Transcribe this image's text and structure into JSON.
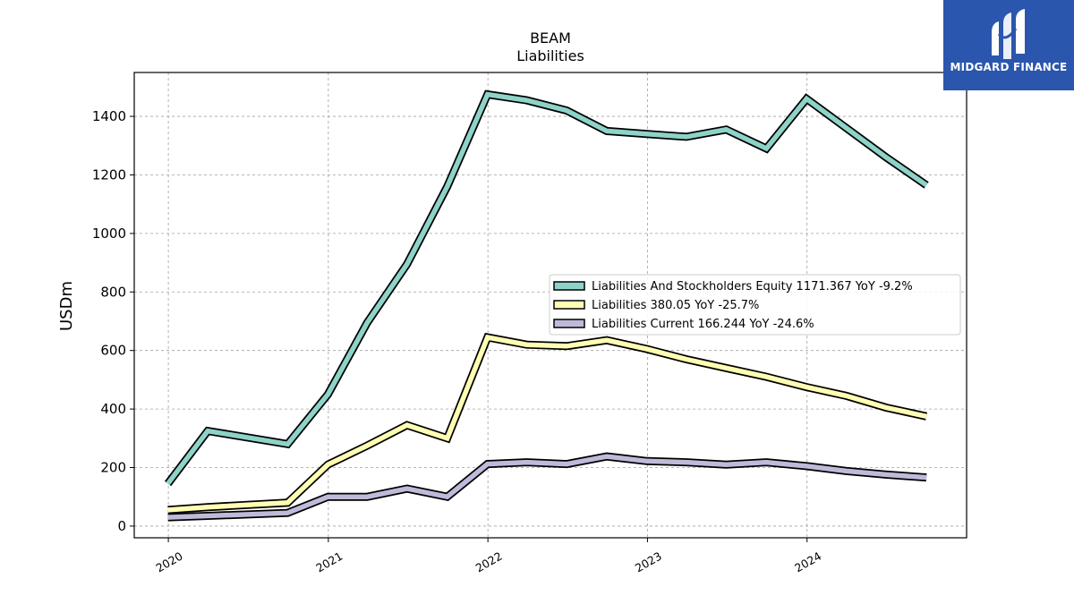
{
  "logo": {
    "text": "MIDGARD FINANCE",
    "icon": "midgard-m-logo-icon",
    "background": "#2a56ad"
  },
  "chart_data": {
    "type": "line",
    "title": "BEAM",
    "subtitle": "Liabilities",
    "xlabel": "",
    "ylabel": "USDm",
    "x_tick_labels": [
      "2020",
      "2021",
      "2022",
      "2023",
      "2024"
    ],
    "y_ticks": [
      0,
      200,
      400,
      600,
      800,
      1000,
      1200,
      1400
    ],
    "xlim": [
      "2019-10-15",
      "2024-12-31"
    ],
    "ylim": [
      -40,
      1550
    ],
    "grid": true,
    "legend_position": "center-right",
    "x": [
      "2019-12-31",
      "2020-03-31",
      "2020-09-30",
      "2020-12-31",
      "2021-03-31",
      "2021-06-30",
      "2021-09-30",
      "2021-12-31",
      "2022-03-31",
      "2022-06-30",
      "2022-09-30",
      "2022-12-31",
      "2023-03-31",
      "2023-06-30",
      "2023-09-30",
      "2023-12-31",
      "2024-03-31",
      "2024-06-30",
      "2024-09-30"
    ],
    "series": [
      {
        "name": "Liabilities And Stockholders Equity",
        "legend_label": "Liabilities And Stockholders Equity  1171.367 YoY -9.2%",
        "color": "#8dd3c7",
        "values": [
          145,
          325,
          280,
          450,
          695,
          895,
          1160,
          1475,
          1455,
          1420,
          1350,
          1340,
          1330,
          1355,
          1290,
          1460,
          1360,
          1260,
          1165
        ]
      },
      {
        "name": "Liabilities",
        "legend_label": "Liabilities  380.05 YoY -25.7%",
        "color": "#ffffb3",
        "values": [
          55,
          65,
          80,
          210,
          275,
          345,
          300,
          645,
          620,
          615,
          635,
          605,
          570,
          540,
          510,
          475,
          445,
          405,
          375
        ]
      },
      {
        "name": "Liabilities Current",
        "legend_label": "Liabilities Current  166.244 YoY -24.6%",
        "color": "#bebada",
        "values": [
          30,
          35,
          45,
          100,
          100,
          128,
          100,
          212,
          218,
          212,
          238,
          222,
          218,
          210,
          218,
          205,
          188,
          176,
          166
        ]
      }
    ]
  }
}
